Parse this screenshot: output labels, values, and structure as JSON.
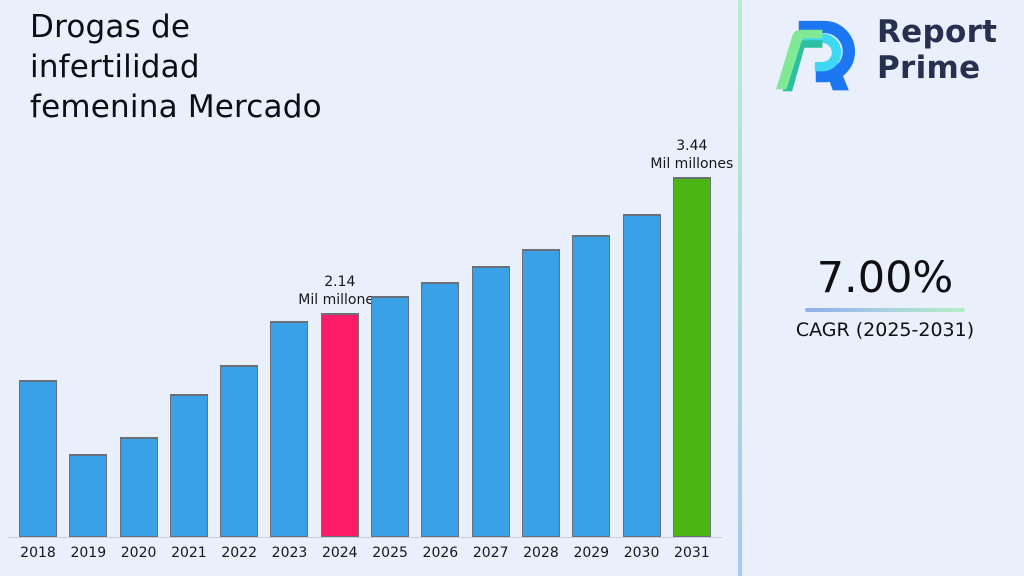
{
  "title": "Drogas de\ninfertilidad\nfemenina Mercado",
  "logo": {
    "line1": "Report",
    "line2": "Prime",
    "icon": "report-prime-mark",
    "colors": {
      "navy": "#28304f",
      "blue": "#1d76f2",
      "cyan": "#3fd8f4",
      "green": "#7fe996",
      "teal": "#2cbfa1"
    }
  },
  "stats": {
    "value": "7.00%",
    "label": "CAGR (2025-2031)",
    "underline_gradient": [
      "#8faef0",
      "#b7edc4"
    ]
  },
  "divider_gradient": [
    "#b5eecd",
    "#a6c8f3"
  ],
  "background_color": "#EAF0FB",
  "chart_data": {
    "type": "bar",
    "title": "Drogas de infertilidad femenina Mercado",
    "xlabel": "",
    "ylabel": "",
    "unit": "Mil millones",
    "grid": false,
    "legend": false,
    "ylim": [
      0,
      3.44
    ],
    "categories": [
      "2018",
      "2019",
      "2020",
      "2021",
      "2022",
      "2023",
      "2024",
      "2025",
      "2026",
      "2027",
      "2028",
      "2029",
      "2030",
      "2031"
    ],
    "values": [
      1.5,
      0.79,
      0.96,
      1.37,
      1.64,
      2.06,
      2.14,
      2.3,
      2.44,
      2.59,
      2.75,
      2.89,
      3.09,
      3.44
    ],
    "annotations": [
      {
        "category": "2024",
        "lines": "2.14\nMil millones"
      },
      {
        "category": "2031",
        "lines": "3.44\nMil millones"
      }
    ],
    "colors": {
      "default": "#3aa1e6",
      "edge": "#6a7078",
      "highlights": {
        "2024": "#fb1b67",
        "2031": "#4bb513"
      }
    }
  }
}
